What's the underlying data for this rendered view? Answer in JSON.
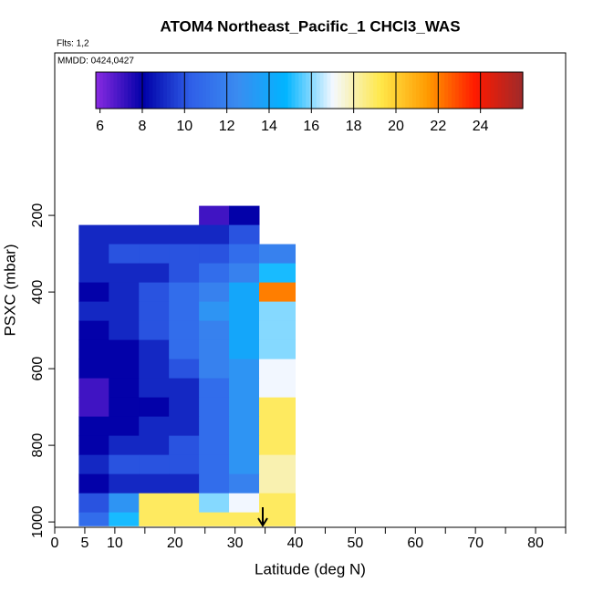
{
  "chart_data": {
    "type": "heatmap",
    "title": "ATOM4 Northeast_Pacific_1 CHCl3_WAS",
    "subtitle": "Flts: 1,2",
    "annotation": "MMDD: 0424,0427",
    "x_label": "Latitude (deg N)",
    "y_label": "PSXC (mbar)",
    "xlim": [
      0,
      85
    ],
    "xticks": [
      0,
      5,
      10,
      20,
      30,
      40,
      50,
      60,
      70,
      80
    ],
    "xminorticks": [
      15,
      25,
      35,
      45,
      55,
      65,
      75,
      85
    ],
    "ylim": [
      1014,
      -224
    ],
    "yticks": [
      200,
      400,
      600,
      800,
      1000
    ],
    "lat_edges": [
      4,
      9,
      14,
      19,
      24,
      29,
      34,
      40
    ],
    "pressure_edges": [
      175,
      225,
      275,
      325,
      375,
      425,
      475,
      525,
      575,
      625,
      675,
      725,
      775,
      825,
      875,
      925,
      975,
      1010
    ],
    "values": [
      [
        null,
        null,
        null,
        null,
        7,
        8,
        null
      ],
      [
        9,
        9,
        9,
        9,
        9,
        10,
        null
      ],
      [
        9,
        10,
        10,
        10,
        10,
        11,
        12
      ],
      [
        9,
        9,
        9,
        10,
        11,
        12,
        15
      ],
      [
        8,
        9,
        10,
        11,
        12,
        14,
        22
      ],
      [
        9,
        9,
        10,
        11,
        13,
        14,
        16
      ],
      [
        8,
        9,
        10,
        11,
        12,
        14,
        16
      ],
      [
        8,
        8,
        9,
        11,
        12,
        14,
        16
      ],
      [
        8,
        8,
        9,
        10,
        12,
        13,
        17
      ],
      [
        7,
        8,
        9,
        9,
        11,
        13,
        17
      ],
      [
        7,
        8,
        8,
        9,
        11,
        13,
        19
      ],
      [
        8,
        8,
        9,
        9,
        11,
        13,
        19
      ],
      [
        8,
        9,
        9,
        10,
        11,
        13,
        19
      ],
      [
        9,
        10,
        10,
        10,
        11,
        13,
        18
      ],
      [
        8,
        9,
        9,
        9,
        11,
        12,
        18
      ],
      [
        10,
        13,
        19,
        19,
        16,
        17,
        19
      ],
      [
        11,
        15,
        19,
        19,
        19,
        19,
        19
      ]
    ],
    "clim": [
      5.8,
      26
    ],
    "cticks": [
      6,
      8,
      10,
      12,
      14,
      16,
      18,
      20,
      22,
      24
    ],
    "colorscale": [
      "#8a2be2",
      "#0000a8",
      "#2f5fe8",
      "#3a8cf0",
      "#00b4ff",
      "#f4f8ff",
      "#ffe84a",
      "#ff9a00",
      "#ff1a00",
      "#9e2a2a"
    ]
  }
}
